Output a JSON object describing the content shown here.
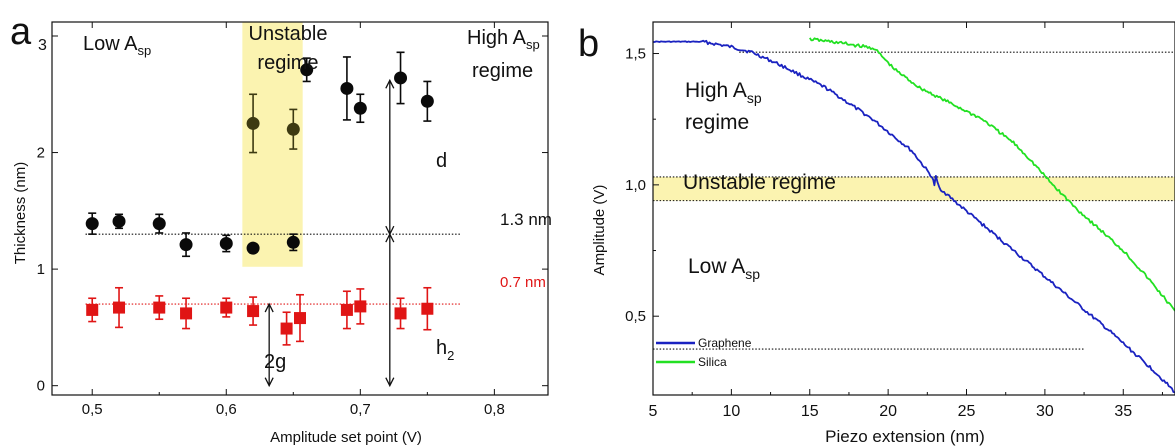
{
  "colors": {
    "black_series": "#0a0a0a",
    "red_series": "#e01515",
    "graphene": "#1a22c0",
    "silica": "#22e022",
    "unstable_band": "#fbf3b0"
  },
  "chart_data": [
    {
      "type": "scatter",
      "panel_label": "a",
      "panel_sub": "3",
      "xlabel": "Amplitude set point (V)",
      "ylabel": "Thickness (nm)",
      "xlim": [
        0.47,
        0.84
      ],
      "ylim": [
        -0.08,
        3.12
      ],
      "x_ticks": [
        0.5,
        0.6,
        0.7,
        0.8
      ],
      "x_tick_labels": [
        "0,5",
        "0,6",
        "0,7",
        "0,8"
      ],
      "y_ticks": [
        0,
        1,
        2,
        3
      ],
      "y_tick_labels": [
        "0",
        "1",
        "2",
        ""
      ],
      "unstable_band": {
        "x": [
          0.612,
          0.657
        ],
        "y": [
          1.02,
          3.12
        ]
      },
      "series": [
        {
          "marker": "circle",
          "color": "#0a0a0a",
          "points": [
            {
              "x": 0.5,
              "y": 1.39,
              "err": 0.09
            },
            {
              "x": 0.52,
              "y": 1.41,
              "err": 0.06
            },
            {
              "x": 0.55,
              "y": 1.39,
              "err": 0.08
            },
            {
              "x": 0.57,
              "y": 1.21,
              "err": 0.1
            },
            {
              "x": 0.6,
              "y": 1.22,
              "err": 0.07
            },
            {
              "x": 0.62,
              "y": 1.18,
              "err": 0
            },
            {
              "x": 0.65,
              "y": 1.23,
              "err": 0.07
            },
            {
              "x": 0.66,
              "y": 2.71,
              "err": 0.1
            },
            {
              "x": 0.69,
              "y": 2.55,
              "err": 0.27
            },
            {
              "x": 0.7,
              "y": 2.38,
              "err": 0.12
            },
            {
              "x": 0.73,
              "y": 2.64,
              "err": 0.22
            },
            {
              "x": 0.75,
              "y": 2.44,
              "err": 0.17
            }
          ]
        },
        {
          "marker": "circle",
          "color": "#3d3a12",
          "points": [
            {
              "x": 0.62,
              "y": 2.25,
              "err": 0.25
            },
            {
              "x": 0.65,
              "y": 2.2,
              "err": 0.17
            }
          ]
        },
        {
          "marker": "square",
          "color": "#e01515",
          "points": [
            {
              "x": 0.5,
              "y": 0.65,
              "err": 0.1
            },
            {
              "x": 0.52,
              "y": 0.67,
              "err": 0.17
            },
            {
              "x": 0.55,
              "y": 0.67,
              "err": 0.1
            },
            {
              "x": 0.57,
              "y": 0.62,
              "err": 0.13
            },
            {
              "x": 0.6,
              "y": 0.67,
              "err": 0.08
            },
            {
              "x": 0.62,
              "y": 0.64,
              "err": 0.12
            },
            {
              "x": 0.645,
              "y": 0.49,
              "err": 0.14
            },
            {
              "x": 0.655,
              "y": 0.58,
              "err": 0.2
            },
            {
              "x": 0.69,
              "y": 0.65,
              "err": 0.16
            },
            {
              "x": 0.7,
              "y": 0.68,
              "err": 0.15
            },
            {
              "x": 0.73,
              "y": 0.62,
              "err": 0.13
            },
            {
              "x": 0.75,
              "y": 0.66,
              "err": 0.18
            }
          ]
        }
      ],
      "ref_lines": [
        {
          "y": 1.3,
          "x": [
            0.495,
            0.775
          ],
          "label": "1.3 nm",
          "color": "#111111"
        },
        {
          "y": 0.7,
          "x": [
            0.495,
            0.775
          ],
          "label": "0.7 nm",
          "color": "#e01515"
        }
      ],
      "annotations": {
        "low_prefix": "Low A",
        "low_sub": "sp",
        "unstable_l1": "Unstable",
        "unstable_l2": "regime",
        "high_prefix": "High A",
        "high_sub": "sp",
        "high_l2": "regime",
        "d_label": "d",
        "h_label": "h",
        "h_sub": "2",
        "g_label": "2g"
      },
      "arrows": {
        "d": {
          "x": 0.722,
          "y": [
            1.3,
            2.62
          ]
        },
        "h2": {
          "x": 0.722,
          "y": [
            0.0,
            1.3
          ]
        },
        "g2": {
          "x": 0.632,
          "y": [
            0.0,
            0.7
          ]
        }
      }
    },
    {
      "type": "line",
      "panel_label": "b",
      "xlabel": "Piezo extension (nm)",
      "ylabel": "Amplitude (V)",
      "xlim": [
        5,
        38.3
      ],
      "ylim": [
        0.2,
        1.62
      ],
      "x_ticks": [
        5,
        10,
        15,
        20,
        25,
        30,
        35
      ],
      "x_tick_labels": [
        "5",
        "10",
        "15",
        "20",
        "25",
        "30",
        "35"
      ],
      "y_ticks": [
        0.5,
        1.0,
        1.5
      ],
      "y_tick_labels": [
        "0,5",
        "1,0",
        "1,5"
      ],
      "unstable_band": {
        "y": [
          0.94,
          1.03
        ]
      },
      "ref_lines": [
        {
          "y": 1.505,
          "x": [
            10.5,
            38.3
          ]
        },
        {
          "y": 1.03,
          "x": [
            5,
            38.3
          ]
        },
        {
          "y": 0.94,
          "x": [
            5,
            38.3
          ]
        },
        {
          "y": 0.375,
          "x": [
            5,
            32.5
          ]
        }
      ],
      "series": [
        {
          "name": "Graphene",
          "color": "#1a22c0",
          "points": [
            [
              5,
              1.545
            ],
            [
              8.2,
              1.545
            ],
            [
              10,
              1.525
            ],
            [
              11.3,
              1.505
            ],
            [
              13,
              1.46
            ],
            [
              16,
              1.37
            ],
            [
              19,
              1.25
            ],
            [
              21.5,
              1.13
            ],
            [
              22.8,
              1.03
            ],
            [
              22.95,
              1.0
            ],
            [
              23.05,
              1.03
            ],
            [
              23.25,
              0.99
            ],
            [
              24,
              0.95
            ],
            [
              26,
              0.85
            ],
            [
              28,
              0.75
            ],
            [
              30,
              0.65
            ],
            [
              32,
              0.55
            ],
            [
              34,
              0.45
            ],
            [
              35.5,
              0.37
            ],
            [
              37,
              0.29
            ],
            [
              38.3,
              0.21
            ]
          ]
        },
        {
          "name": "Silica",
          "color": "#22e022",
          "points": [
            [
              15,
              1.555
            ],
            [
              17,
              1.54
            ],
            [
              19.1,
              1.52
            ],
            [
              20.4,
              1.44
            ],
            [
              22,
              1.37
            ],
            [
              24,
              1.31
            ],
            [
              26,
              1.25
            ],
            [
              28,
              1.16
            ],
            [
              29,
              1.1
            ],
            [
              30.5,
              1.0
            ],
            [
              32,
              0.91
            ],
            [
              33.5,
              0.83
            ],
            [
              35,
              0.75
            ],
            [
              36.5,
              0.65
            ],
            [
              38.3,
              0.52
            ]
          ]
        }
      ],
      "annotations": {
        "high_prefix": "High A",
        "high_sub": "sp",
        "high_l2": "regime",
        "unstable": "Unstable regime",
        "low_prefix": "Low A",
        "low_sub": "sp"
      }
    }
  ]
}
